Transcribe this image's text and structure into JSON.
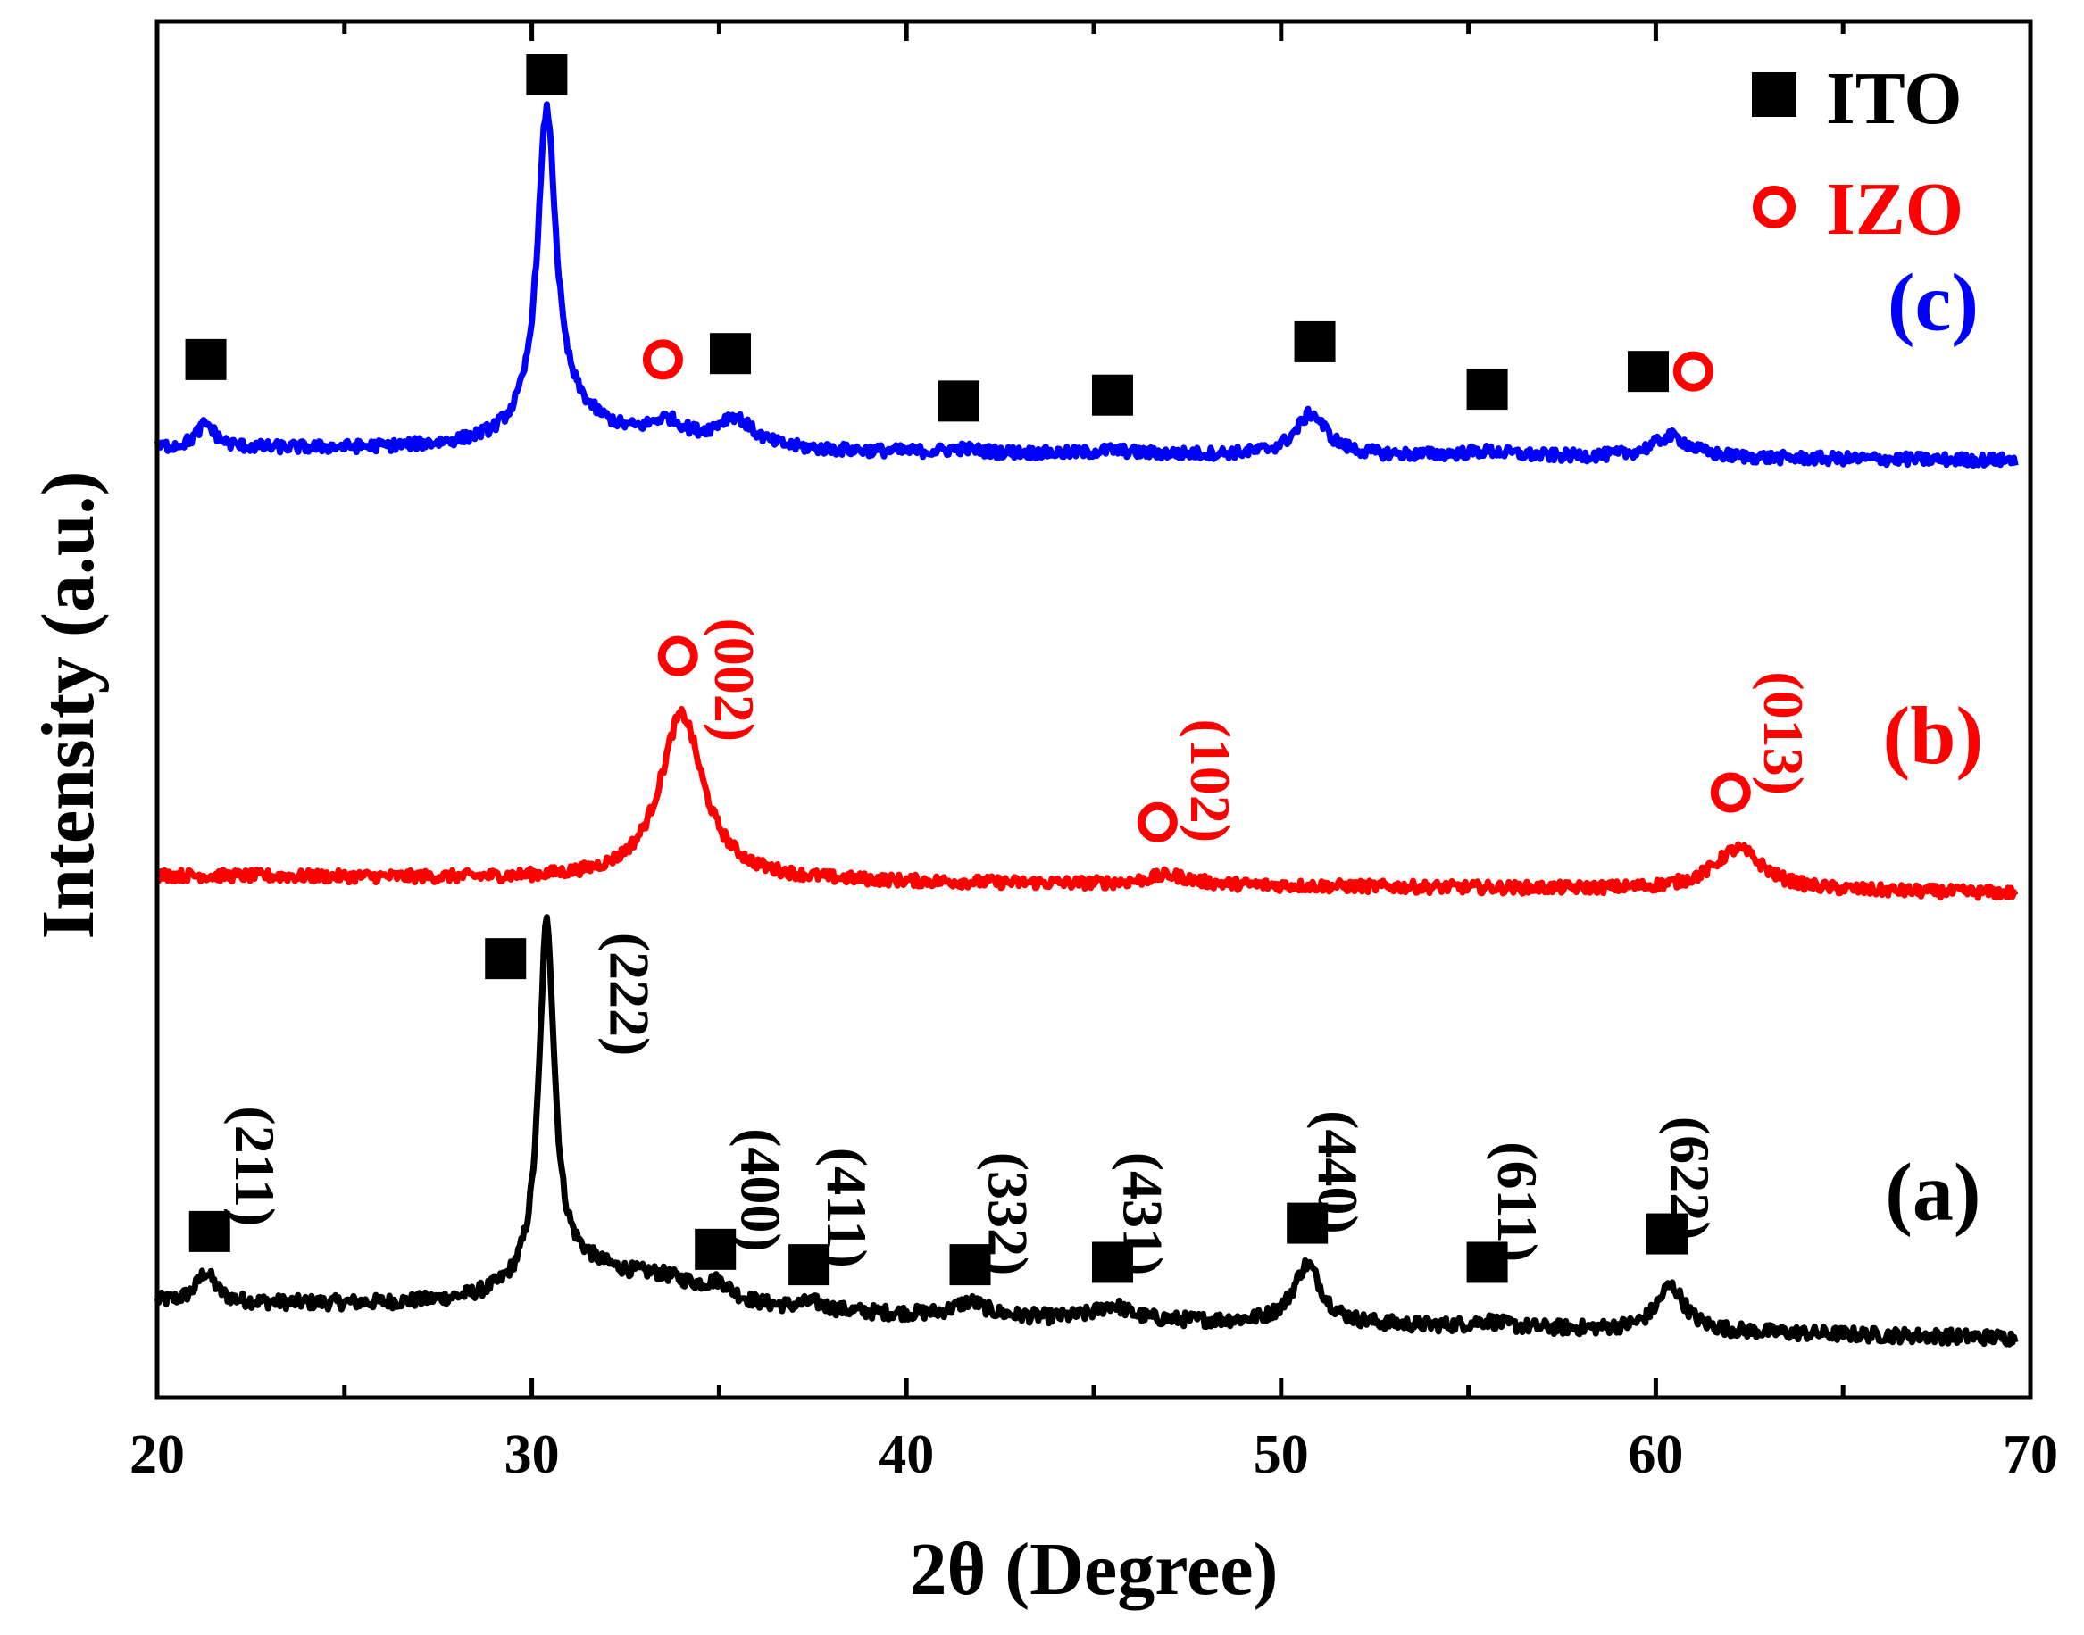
{
  "chart_data": {
    "type": "line",
    "title": "",
    "xlabel": "2θ (Degree)",
    "ylabel": "Intensity (a.u.)",
    "xlim": [
      20,
      70
    ],
    "xticks": [
      20,
      30,
      40,
      50,
      60,
      70
    ],
    "yticks_shown": false,
    "grid": false,
    "legend": {
      "position": "top-right",
      "entries": [
        {
          "marker": "filled-square",
          "label": "ITO",
          "color": "#000000"
        },
        {
          "marker": "open-circle",
          "label": "IZO",
          "color": "#ff0000"
        }
      ]
    },
    "series": [
      {
        "name": "(a)",
        "color": "#000000",
        "baseline": 0.0,
        "slope": -0.06,
        "noise": 0.12,
        "peaks": [
          {
            "x": 21.3,
            "h": 0.25,
            "w": 0.3
          },
          {
            "x": 30.4,
            "h": 3.0,
            "w": 0.25
          },
          {
            "x": 31.2,
            "h": 0.3,
            "w": 1.6
          },
          {
            "x": 33.5,
            "h": 0.2,
            "w": 1.5
          },
          {
            "x": 35.0,
            "h": 0.12,
            "w": 0.4
          },
          {
            "x": 37.5,
            "h": 0.06,
            "w": 0.4
          },
          {
            "x": 41.7,
            "h": 0.12,
            "w": 0.5
          },
          {
            "x": 45.5,
            "h": 0.12,
            "w": 0.5
          },
          {
            "x": 50.7,
            "h": 0.5,
            "w": 0.45
          },
          {
            "x": 55.5,
            "h": 0.05,
            "w": 0.5
          },
          {
            "x": 60.4,
            "h": 0.38,
            "w": 0.45
          }
        ],
        "markers": [
          {
            "x": 21.4,
            "y": 0.6,
            "type": "square",
            "color": "#000000"
          },
          {
            "x": 29.3,
            "y": 2.9,
            "type": "square",
            "color": "#000000"
          },
          {
            "x": 34.9,
            "y": 0.45,
            "type": "square",
            "color": "#000000"
          },
          {
            "x": 37.4,
            "y": 0.32,
            "type": "square",
            "color": "#000000"
          },
          {
            "x": 41.7,
            "y": 0.32,
            "type": "square",
            "color": "#000000"
          },
          {
            "x": 45.5,
            "y": 0.34,
            "type": "square",
            "color": "#000000"
          },
          {
            "x": 50.7,
            "y": 0.67,
            "type": "square",
            "color": "#000000"
          },
          {
            "x": 55.5,
            "y": 0.34,
            "type": "square",
            "color": "#000000"
          },
          {
            "x": 60.3,
            "y": 0.58,
            "type": "square",
            "color": "#000000"
          }
        ],
        "labels": [
          {
            "x": 22.1,
            "y": 1.15,
            "text": "(211)",
            "color": "#000000"
          },
          {
            "x": 32.1,
            "y": 2.6,
            "text": "(222)",
            "color": "#000000"
          },
          {
            "x": 35.6,
            "y": 0.95,
            "text": "(400)",
            "color": "#000000"
          },
          {
            "x": 37.9,
            "y": 0.8,
            "text": "(411)",
            "color": "#000000"
          },
          {
            "x": 42.2,
            "y": 0.75,
            "text": "(332)",
            "color": "#000000"
          },
          {
            "x": 45.8,
            "y": 0.75,
            "text": "(431)",
            "color": "#000000"
          },
          {
            "x": 51.0,
            "y": 1.1,
            "text": "(440)",
            "color": "#000000"
          },
          {
            "x": 55.8,
            "y": 0.85,
            "text": "(611)",
            "color": "#000000"
          },
          {
            "x": 60.4,
            "y": 1.05,
            "text": "(622)",
            "color": "#000000"
          }
        ],
        "series_label": {
          "x": 67.4,
          "y": 0.7,
          "text": "(a)"
        }
      },
      {
        "name": "(b)",
        "color": "#ff0000",
        "baseline": 3.6,
        "slope": -0.03,
        "noise": 0.1,
        "peaks": [
          {
            "x": 34.0,
            "h": 1.4,
            "w": 0.7
          },
          {
            "x": 47.0,
            "h": 0.08,
            "w": 0.7
          },
          {
            "x": 62.2,
            "h": 0.35,
            "w": 0.8
          }
        ],
        "markers": [
          {
            "x": 33.9,
            "y": 5.45,
            "type": "circle",
            "color": "#ff0000"
          },
          {
            "x": 46.7,
            "y": 4.05,
            "type": "circle",
            "color": "#ff0000"
          },
          {
            "x": 62.0,
            "y": 4.3,
            "type": "circle",
            "color": "#ff0000"
          }
        ],
        "labels": [
          {
            "x": 34.9,
            "y": 5.25,
            "text": "(002)",
            "color": "#ff0000"
          },
          {
            "x": 47.6,
            "y": 4.4,
            "text": "(102)",
            "color": "#ff0000"
          },
          {
            "x": 62.9,
            "y": 4.8,
            "text": "(013)",
            "color": "#ff0000"
          }
        ],
        "series_label": {
          "x": 67.4,
          "y": 4.55,
          "text": "(b)"
        }
      },
      {
        "name": "(c)",
        "color": "#0000ff",
        "baseline": 7.2,
        "slope": -0.02,
        "noise": 0.1,
        "peaks": [
          {
            "x": 21.3,
            "h": 0.2,
            "w": 0.3
          },
          {
            "x": 30.4,
            "h": 2.65,
            "w": 0.3
          },
          {
            "x": 31.0,
            "h": 0.25,
            "w": 1.5
          },
          {
            "x": 33.6,
            "h": 0.18,
            "w": 0.6
          },
          {
            "x": 35.4,
            "h": 0.25,
            "w": 0.6
          },
          {
            "x": 41.5,
            "h": 0.03,
            "w": 0.5
          },
          {
            "x": 45.5,
            "h": 0.03,
            "w": 0.5
          },
          {
            "x": 50.8,
            "h": 0.35,
            "w": 0.5
          },
          {
            "x": 55.5,
            "h": 0.04,
            "w": 0.8
          },
          {
            "x": 60.4,
            "h": 0.18,
            "w": 0.6
          }
        ],
        "markers": [
          {
            "x": 21.3,
            "y": 7.95,
            "type": "square",
            "color": "#000000"
          },
          {
            "x": 30.4,
            "y": 10.35,
            "type": "square",
            "color": "#000000"
          },
          {
            "x": 33.5,
            "y": 7.95,
            "type": "circle",
            "color": "#ff0000"
          },
          {
            "x": 35.3,
            "y": 8.0,
            "type": "square",
            "color": "#000000"
          },
          {
            "x": 41.4,
            "y": 7.6,
            "type": "square",
            "color": "#000000"
          },
          {
            "x": 45.5,
            "y": 7.65,
            "type": "square",
            "color": "#000000"
          },
          {
            "x": 50.9,
            "y": 8.1,
            "type": "square",
            "color": "#000000"
          },
          {
            "x": 55.5,
            "y": 7.7,
            "type": "square",
            "color": "#000000"
          },
          {
            "x": 59.8,
            "y": 7.85,
            "type": "square",
            "color": "#000000"
          },
          {
            "x": 61.0,
            "y": 7.85,
            "type": "circle",
            "color": "#ff0000"
          }
        ],
        "labels": [],
        "series_label": {
          "x": 67.4,
          "y": 8.2,
          "text": "(c)"
        }
      }
    ]
  }
}
